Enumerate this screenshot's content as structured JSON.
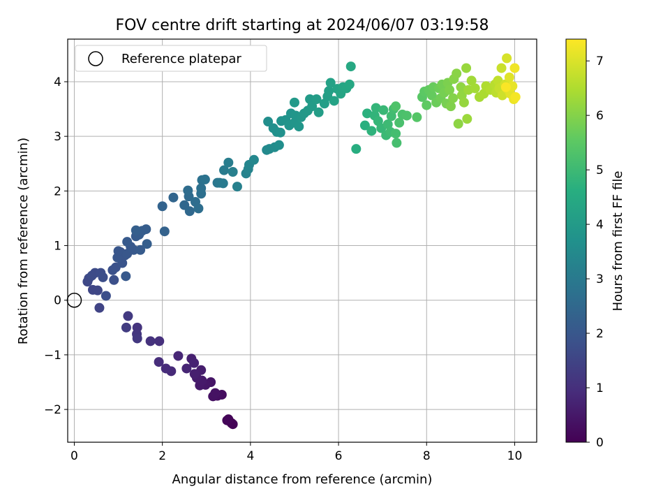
{
  "chart_data": {
    "type": "scatter",
    "title": "FOV centre drift starting at 2024/06/07 03:19:58",
    "xlabel": "Angular distance from reference (arcmin)",
    "ylabel": "Rotation from reference (arcmin)",
    "xlim": [
      -0.15,
      10.5
    ],
    "ylim": [
      -2.6,
      4.78
    ],
    "xticks": [
      0,
      2,
      4,
      6,
      8,
      10
    ],
    "yticks": [
      -2,
      -1,
      0,
      1,
      2,
      3,
      4
    ],
    "grid": true,
    "legend": {
      "placement": "top-left",
      "entries": [
        "Reference platepar"
      ]
    },
    "reference_point": {
      "x": 0,
      "y": 0,
      "label": "Reference platepar"
    },
    "colorbar": {
      "label": "Hours from first FF file",
      "range": [
        0,
        7.4
      ],
      "ticks": [
        0,
        1,
        2,
        3,
        4,
        5,
        6,
        7
      ],
      "colormap": "viridis"
    },
    "points": [
      {
        "x": 3.57,
        "y": -2.25,
        "c": 0.02
      },
      {
        "x": 3.6,
        "y": -2.27,
        "c": 0.05
      },
      {
        "x": 3.5,
        "y": -2.18,
        "c": 0.08
      },
      {
        "x": 3.47,
        "y": -2.2,
        "c": 0.1
      },
      {
        "x": 3.35,
        "y": -1.73,
        "c": 0.25
      },
      {
        "x": 3.25,
        "y": -1.75,
        "c": 0.3
      },
      {
        "x": 3.15,
        "y": -1.76,
        "c": 0.33
      },
      {
        "x": 3.2,
        "y": -1.7,
        "c": 0.36
      },
      {
        "x": 3.1,
        "y": -1.5,
        "c": 0.42
      },
      {
        "x": 2.98,
        "y": -1.55,
        "c": 0.46
      },
      {
        "x": 2.85,
        "y": -1.56,
        "c": 0.5
      },
      {
        "x": 2.9,
        "y": -1.47,
        "c": 0.53
      },
      {
        "x": 2.78,
        "y": -1.42,
        "c": 0.56
      },
      {
        "x": 2.88,
        "y": -1.28,
        "c": 0.6
      },
      {
        "x": 2.73,
        "y": -1.35,
        "c": 0.63
      },
      {
        "x": 2.66,
        "y": -1.07,
        "c": 0.66
      },
      {
        "x": 2.72,
        "y": -1.15,
        "c": 0.7
      },
      {
        "x": 2.55,
        "y": -1.25,
        "c": 0.75
      },
      {
        "x": 2.36,
        "y": -1.02,
        "c": 0.8
      },
      {
        "x": 2.2,
        "y": -1.3,
        "c": 0.86
      },
      {
        "x": 2.08,
        "y": -1.25,
        "c": 0.9
      },
      {
        "x": 1.92,
        "y": -1.13,
        "c": 0.95
      },
      {
        "x": 1.93,
        "y": -0.75,
        "c": 1.0
      },
      {
        "x": 1.73,
        "y": -0.75,
        "c": 1.05
      },
      {
        "x": 1.43,
        "y": -0.5,
        "c": 1.1
      },
      {
        "x": 1.42,
        "y": -0.62,
        "c": 1.15
      },
      {
        "x": 1.43,
        "y": -0.7,
        "c": 1.2
      },
      {
        "x": 1.22,
        "y": -0.29,
        "c": 1.25
      },
      {
        "x": 1.18,
        "y": -0.5,
        "c": 1.3
      },
      {
        "x": 0.57,
        "y": -0.14,
        "c": 1.5
      },
      {
        "x": 0.42,
        "y": 0.19,
        "c": 1.55
      },
      {
        "x": 0.53,
        "y": 0.18,
        "c": 1.58
      },
      {
        "x": 0.3,
        "y": 0.34,
        "c": 1.6
      },
      {
        "x": 0.33,
        "y": 0.4,
        "c": 1.63
      },
      {
        "x": 0.47,
        "y": 0.5,
        "c": 1.67
      },
      {
        "x": 0.4,
        "y": 0.45,
        "c": 1.7
      },
      {
        "x": 0.6,
        "y": 0.5,
        "c": 1.72
      },
      {
        "x": 0.65,
        "y": 0.42,
        "c": 1.75
      },
      {
        "x": 0.72,
        "y": 0.08,
        "c": 1.78
      },
      {
        "x": 0.9,
        "y": 0.37,
        "c": 1.8
      },
      {
        "x": 0.87,
        "y": 0.55,
        "c": 1.83
      },
      {
        "x": 0.94,
        "y": 0.6,
        "c": 1.85
      },
      {
        "x": 1.05,
        "y": 0.88,
        "c": 1.88
      },
      {
        "x": 1.09,
        "y": 0.68,
        "c": 1.9
      },
      {
        "x": 1.15,
        "y": 0.82,
        "c": 1.93
      },
      {
        "x": 0.98,
        "y": 0.78,
        "c": 1.96
      },
      {
        "x": 1.0,
        "y": 0.9,
        "c": 1.98
      },
      {
        "x": 1.2,
        "y": 0.85,
        "c": 2.0
      },
      {
        "x": 1.28,
        "y": 0.98,
        "c": 2.02
      },
      {
        "x": 1.17,
        "y": 0.44,
        "c": 2.04
      },
      {
        "x": 1.35,
        "y": 0.92,
        "c": 2.06
      },
      {
        "x": 1.2,
        "y": 1.07,
        "c": 2.08
      },
      {
        "x": 1.4,
        "y": 1.17,
        "c": 2.1
      },
      {
        "x": 1.5,
        "y": 0.92,
        "c": 2.12
      },
      {
        "x": 1.47,
        "y": 1.2,
        "c": 2.14
      },
      {
        "x": 1.63,
        "y": 1.3,
        "c": 2.16
      },
      {
        "x": 1.54,
        "y": 1.27,
        "c": 2.18
      },
      {
        "x": 1.65,
        "y": 1.03,
        "c": 2.2
      },
      {
        "x": 1.4,
        "y": 1.28,
        "c": 2.22
      },
      {
        "x": 2.05,
        "y": 1.26,
        "c": 2.3
      },
      {
        "x": 2.0,
        "y": 1.72,
        "c": 2.35
      },
      {
        "x": 2.25,
        "y": 1.88,
        "c": 2.4
      },
      {
        "x": 2.5,
        "y": 1.74,
        "c": 2.45
      },
      {
        "x": 2.62,
        "y": 1.63,
        "c": 2.5
      },
      {
        "x": 2.6,
        "y": 1.9,
        "c": 2.55
      },
      {
        "x": 2.58,
        "y": 2.01,
        "c": 2.6
      },
      {
        "x": 2.75,
        "y": 1.8,
        "c": 2.63
      },
      {
        "x": 2.82,
        "y": 1.68,
        "c": 2.66
      },
      {
        "x": 2.88,
        "y": 1.95,
        "c": 2.7
      },
      {
        "x": 2.88,
        "y": 2.05,
        "c": 2.73
      },
      {
        "x": 2.9,
        "y": 2.2,
        "c": 2.76
      },
      {
        "x": 2.97,
        "y": 2.21,
        "c": 2.8
      },
      {
        "x": 3.25,
        "y": 2.15,
        "c": 2.9
      },
      {
        "x": 3.3,
        "y": 2.15,
        "c": 2.95
      },
      {
        "x": 3.38,
        "y": 2.14,
        "c": 3.0
      },
      {
        "x": 3.4,
        "y": 2.38,
        "c": 3.05
      },
      {
        "x": 3.5,
        "y": 2.52,
        "c": 3.1
      },
      {
        "x": 3.6,
        "y": 2.35,
        "c": 3.15
      },
      {
        "x": 3.7,
        "y": 2.08,
        "c": 3.2
      },
      {
        "x": 3.9,
        "y": 2.32,
        "c": 3.25
      },
      {
        "x": 3.95,
        "y": 2.4,
        "c": 3.3
      },
      {
        "x": 3.97,
        "y": 2.48,
        "c": 3.35
      },
      {
        "x": 4.08,
        "y": 2.57,
        "c": 3.4
      },
      {
        "x": 4.37,
        "y": 2.75,
        "c": 3.45
      },
      {
        "x": 4.43,
        "y": 2.77,
        "c": 3.5
      },
      {
        "x": 4.55,
        "y": 2.8,
        "c": 3.55
      },
      {
        "x": 4.65,
        "y": 2.84,
        "c": 3.6
      },
      {
        "x": 4.4,
        "y": 3.27,
        "c": 3.62
      },
      {
        "x": 4.52,
        "y": 3.15,
        "c": 3.65
      },
      {
        "x": 4.6,
        "y": 3.08,
        "c": 3.68
      },
      {
        "x": 4.68,
        "y": 3.07,
        "c": 3.7
      },
      {
        "x": 4.7,
        "y": 3.28,
        "c": 3.73
      },
      {
        "x": 4.8,
        "y": 3.3,
        "c": 3.75
      },
      {
        "x": 4.88,
        "y": 3.2,
        "c": 3.78
      },
      {
        "x": 4.92,
        "y": 3.42,
        "c": 3.8
      },
      {
        "x": 5.0,
        "y": 3.25,
        "c": 3.82
      },
      {
        "x": 5.03,
        "y": 3.38,
        "c": 3.85
      },
      {
        "x": 5.1,
        "y": 3.18,
        "c": 3.87
      },
      {
        "x": 5.15,
        "y": 3.35,
        "c": 3.9
      },
      {
        "x": 5.22,
        "y": 3.42,
        "c": 3.92
      },
      {
        "x": 5.0,
        "y": 3.62,
        "c": 3.95
      },
      {
        "x": 5.3,
        "y": 3.47,
        "c": 3.97
      },
      {
        "x": 5.35,
        "y": 3.68,
        "c": 4.0
      },
      {
        "x": 5.4,
        "y": 3.55,
        "c": 4.02
      },
      {
        "x": 5.5,
        "y": 3.68,
        "c": 4.05
      },
      {
        "x": 5.55,
        "y": 3.44,
        "c": 4.08
      },
      {
        "x": 5.68,
        "y": 3.6,
        "c": 4.1
      },
      {
        "x": 5.75,
        "y": 3.73,
        "c": 4.13
      },
      {
        "x": 5.78,
        "y": 3.83,
        "c": 4.16
      },
      {
        "x": 5.82,
        "y": 3.98,
        "c": 4.2
      },
      {
        "x": 5.9,
        "y": 3.65,
        "c": 4.23
      },
      {
        "x": 5.97,
        "y": 3.87,
        "c": 4.26
      },
      {
        "x": 6.05,
        "y": 3.78,
        "c": 4.3
      },
      {
        "x": 6.1,
        "y": 3.9,
        "c": 4.33
      },
      {
        "x": 6.18,
        "y": 3.88,
        "c": 4.36
      },
      {
        "x": 6.25,
        "y": 3.95,
        "c": 4.4
      },
      {
        "x": 6.28,
        "y": 4.28,
        "c": 4.43
      },
      {
        "x": 6.4,
        "y": 2.77,
        "c": 4.6
      },
      {
        "x": 6.6,
        "y": 3.2,
        "c": 4.65
      },
      {
        "x": 6.65,
        "y": 3.42,
        "c": 4.7
      },
      {
        "x": 6.75,
        "y": 3.1,
        "c": 4.75
      },
      {
        "x": 6.82,
        "y": 3.38,
        "c": 4.8
      },
      {
        "x": 6.85,
        "y": 3.52,
        "c": 4.83
      },
      {
        "x": 6.9,
        "y": 3.28,
        "c": 4.86
      },
      {
        "x": 6.97,
        "y": 3.15,
        "c": 4.9
      },
      {
        "x": 7.02,
        "y": 3.48,
        "c": 4.93
      },
      {
        "x": 7.08,
        "y": 3.02,
        "c": 4.96
      },
      {
        "x": 7.12,
        "y": 3.22,
        "c": 5.0
      },
      {
        "x": 7.18,
        "y": 3.08,
        "c": 5.03
      },
      {
        "x": 7.2,
        "y": 3.37,
        "c": 5.06
      },
      {
        "x": 7.25,
        "y": 3.5,
        "c": 5.1
      },
      {
        "x": 7.3,
        "y": 3.05,
        "c": 5.13
      },
      {
        "x": 7.32,
        "y": 2.88,
        "c": 5.16
      },
      {
        "x": 7.38,
        "y": 3.25,
        "c": 5.2
      },
      {
        "x": 7.45,
        "y": 3.4,
        "c": 5.23
      },
      {
        "x": 7.55,
        "y": 3.38,
        "c": 5.26
      },
      {
        "x": 7.3,
        "y": 3.55,
        "c": 5.3
      },
      {
        "x": 7.78,
        "y": 3.35,
        "c": 5.4
      },
      {
        "x": 7.9,
        "y": 3.72,
        "c": 5.45
      },
      {
        "x": 7.95,
        "y": 3.82,
        "c": 5.5
      },
      {
        "x": 8.0,
        "y": 3.57,
        "c": 5.55
      },
      {
        "x": 8.05,
        "y": 3.85,
        "c": 5.58
      },
      {
        "x": 8.12,
        "y": 3.75,
        "c": 5.62
      },
      {
        "x": 8.15,
        "y": 3.9,
        "c": 5.65
      },
      {
        "x": 8.22,
        "y": 3.62,
        "c": 5.7
      },
      {
        "x": 8.28,
        "y": 3.88,
        "c": 5.73
      },
      {
        "x": 8.32,
        "y": 3.7,
        "c": 5.76
      },
      {
        "x": 8.35,
        "y": 3.95,
        "c": 5.8
      },
      {
        "x": 8.4,
        "y": 3.8,
        "c": 5.83
      },
      {
        "x": 8.45,
        "y": 3.6,
        "c": 5.86
      },
      {
        "x": 8.48,
        "y": 3.98,
        "c": 5.9
      },
      {
        "x": 8.52,
        "y": 3.85,
        "c": 5.93
      },
      {
        "x": 8.55,
        "y": 3.55,
        "c": 5.96
      },
      {
        "x": 8.6,
        "y": 3.7,
        "c": 6.0
      },
      {
        "x": 8.62,
        "y": 4.05,
        "c": 6.03
      },
      {
        "x": 8.68,
        "y": 4.15,
        "c": 6.06
      },
      {
        "x": 8.72,
        "y": 3.23,
        "c": 6.1
      },
      {
        "x": 8.78,
        "y": 3.9,
        "c": 6.13
      },
      {
        "x": 8.8,
        "y": 3.75,
        "c": 6.16
      },
      {
        "x": 8.85,
        "y": 3.62,
        "c": 6.2
      },
      {
        "x": 8.9,
        "y": 4.25,
        "c": 6.23
      },
      {
        "x": 8.92,
        "y": 3.32,
        "c": 6.26
      },
      {
        "x": 8.95,
        "y": 3.85,
        "c": 6.3
      },
      {
        "x": 9.02,
        "y": 4.02,
        "c": 6.33
      },
      {
        "x": 9.1,
        "y": 3.88,
        "c": 6.36
      },
      {
        "x": 9.2,
        "y": 3.72,
        "c": 6.4
      },
      {
        "x": 9.3,
        "y": 3.78,
        "c": 6.45
      },
      {
        "x": 9.35,
        "y": 3.92,
        "c": 6.5
      },
      {
        "x": 9.45,
        "y": 3.85,
        "c": 6.55
      },
      {
        "x": 9.55,
        "y": 3.95,
        "c": 6.6
      },
      {
        "x": 9.58,
        "y": 3.8,
        "c": 6.65
      },
      {
        "x": 9.62,
        "y": 4.02,
        "c": 6.7
      },
      {
        "x": 9.65,
        "y": 3.88,
        "c": 6.75
      },
      {
        "x": 9.7,
        "y": 4.25,
        "c": 6.8
      },
      {
        "x": 9.72,
        "y": 3.75,
        "c": 6.85
      },
      {
        "x": 9.78,
        "y": 3.95,
        "c": 6.9
      },
      {
        "x": 9.82,
        "y": 4.43,
        "c": 6.95
      },
      {
        "x": 9.85,
        "y": 3.85,
        "c": 7.0
      },
      {
        "x": 9.88,
        "y": 4.08,
        "c": 7.05
      },
      {
        "x": 9.9,
        "y": 3.78,
        "c": 7.1
      },
      {
        "x": 9.95,
        "y": 3.92,
        "c": 7.15
      },
      {
        "x": 9.98,
        "y": 3.68,
        "c": 7.2
      },
      {
        "x": 10.0,
        "y": 4.25,
        "c": 7.25
      },
      {
        "x": 10.02,
        "y": 3.72,
        "c": 7.3
      },
      {
        "x": 9.8,
        "y": 3.9,
        "c": 7.35
      }
    ]
  }
}
